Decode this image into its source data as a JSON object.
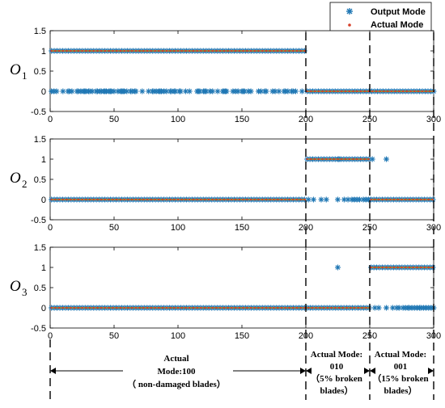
{
  "chart_data": [
    {
      "type": "scatter",
      "ylabel": "O",
      "ysub": "1",
      "xlim": [
        0,
        300
      ],
      "ylim": [
        -0.5,
        1.5
      ],
      "xticks": [
        "0",
        "50",
        "100",
        "150",
        "200",
        "250",
        "300"
      ],
      "yticks": [
        "1.5",
        "1",
        "0.5",
        "0",
        "-0.5"
      ],
      "actual_segments": [
        {
          "x": [
            1,
            200
          ],
          "y": 1
        },
        {
          "x": [
            201,
            300
          ],
          "y": 0
        }
      ],
      "output_segments": [
        {
          "x": [
            1,
            200
          ],
          "y": 1
        },
        {
          "x": [
            201,
            300
          ],
          "y": 0
        }
      ],
      "output_outliers_x": [
        1,
        3,
        5,
        10,
        14,
        15,
        17,
        21,
        22,
        24,
        26,
        27,
        28,
        30,
        31,
        33,
        36,
        37,
        39,
        40,
        42,
        43,
        44,
        46,
        47,
        48,
        50,
        53,
        55,
        56,
        57,
        58,
        60,
        63,
        64,
        66,
        67,
        72,
        77,
        80,
        81,
        83,
        85,
        86,
        87,
        89,
        91,
        94,
        95,
        97,
        98,
        101,
        102,
        106,
        109,
        115,
        116,
        117,
        120,
        121,
        122,
        125,
        127,
        131,
        135,
        136,
        137,
        138,
        143,
        145,
        147,
        150,
        151,
        152,
        155,
        157,
        163,
        165,
        168,
        169,
        174,
        176,
        179,
        183,
        184,
        186,
        189,
        190,
        192,
        197
      ],
      "output_outliers_y": 0
    },
    {
      "type": "scatter",
      "ylabel": "O",
      "ysub": "2",
      "xlim": [
        0,
        300
      ],
      "ylim": [
        -0.5,
        1.5
      ],
      "xticks": [
        "0",
        "50",
        "100",
        "150",
        "200",
        "250",
        "300"
      ],
      "yticks": [
        "1.5",
        "1",
        "0.5",
        "0",
        "-0.5"
      ],
      "actual_segments": [
        {
          "x": [
            1,
            200
          ],
          "y": 0
        },
        {
          "x": [
            201,
            250
          ],
          "y": 1
        },
        {
          "x": [
            251,
            300
          ],
          "y": 0
        }
      ],
      "output_segments": [
        {
          "x": [
            1,
            200
          ],
          "y": 0
        },
        {
          "x": [
            201,
            250
          ],
          "y": 1
        },
        {
          "x": [
            251,
            300
          ],
          "y": 0
        }
      ],
      "output_outliers": [
        {
          "x": 202,
          "y": 0
        },
        {
          "x": 206,
          "y": 0
        },
        {
          "x": 212,
          "y": 0
        },
        {
          "x": 216,
          "y": 0
        },
        {
          "x": 225,
          "y": 0
        },
        {
          "x": 230,
          "y": 0
        },
        {
          "x": 233,
          "y": 0
        },
        {
          "x": 236,
          "y": 0
        },
        {
          "x": 238,
          "y": 0
        },
        {
          "x": 240,
          "y": 0
        },
        {
          "x": 242,
          "y": 0
        },
        {
          "x": 245,
          "y": 0
        },
        {
          "x": 247,
          "y": 0
        },
        {
          "x": 249,
          "y": 0
        },
        {
          "x": 226,
          "y": 1
        },
        {
          "x": 252,
          "y": 1
        },
        {
          "x": 263,
          "y": 1
        }
      ]
    },
    {
      "type": "scatter",
      "ylabel": "O",
      "ysub": "3",
      "xlim": [
        0,
        300
      ],
      "ylim": [
        -0.5,
        1.5
      ],
      "xticks": [
        "0",
        "50",
        "100",
        "150",
        "200",
        "250",
        "300"
      ],
      "yticks": [
        "1.5",
        "1",
        "0.5",
        "0",
        "-0.5"
      ],
      "actual_segments": [
        {
          "x": [
            1,
            250
          ],
          "y": 0
        },
        {
          "x": [
            251,
            300
          ],
          "y": 1
        }
      ],
      "output_segments": [
        {
          "x": [
            1,
            250
          ],
          "y": 0
        },
        {
          "x": [
            251,
            300
          ],
          "y": 1
        }
      ],
      "output_outliers": [
        {
          "x": 225,
          "y": 1
        },
        {
          "x": 254,
          "y": 0
        },
        {
          "x": 257,
          "y": 0
        },
        {
          "x": 263,
          "y": 0
        },
        {
          "x": 268,
          "y": 0
        },
        {
          "x": 271,
          "y": 0
        },
        {
          "x": 273,
          "y": 0
        },
        {
          "x": 276,
          "y": 0
        },
        {
          "x": 278,
          "y": 0
        },
        {
          "x": 280,
          "y": 0
        },
        {
          "x": 281,
          "y": 0
        },
        {
          "x": 283,
          "y": 0
        },
        {
          "x": 285,
          "y": 0
        },
        {
          "x": 287,
          "y": 0
        },
        {
          "x": 289,
          "y": 0
        },
        {
          "x": 290,
          "y": 0
        },
        {
          "x": 292,
          "y": 0
        },
        {
          "x": 294,
          "y": 0
        },
        {
          "x": 296,
          "y": 0
        },
        {
          "x": 298,
          "y": 0
        },
        {
          "x": 300,
          "y": 0
        }
      ]
    }
  ],
  "legend": {
    "placement": "top-right",
    "items": [
      "Output Mode",
      "Actual Mode"
    ]
  },
  "colors": {
    "output": "#1f77b4",
    "actual": "#d6402a",
    "actual_line": "#b8860b",
    "axis": "#000000"
  },
  "dividers_x": [
    200,
    250
  ],
  "annotations": {
    "mode1": [
      "Actual",
      "Mode:100",
      "（ non-damaged blades）"
    ],
    "mode2": [
      "Actual  Mode:",
      "010",
      "（5% broken",
      "blades）"
    ],
    "mode3": [
      "Actual  Mode:",
      "001",
      "（15% broken",
      "blades）"
    ]
  }
}
